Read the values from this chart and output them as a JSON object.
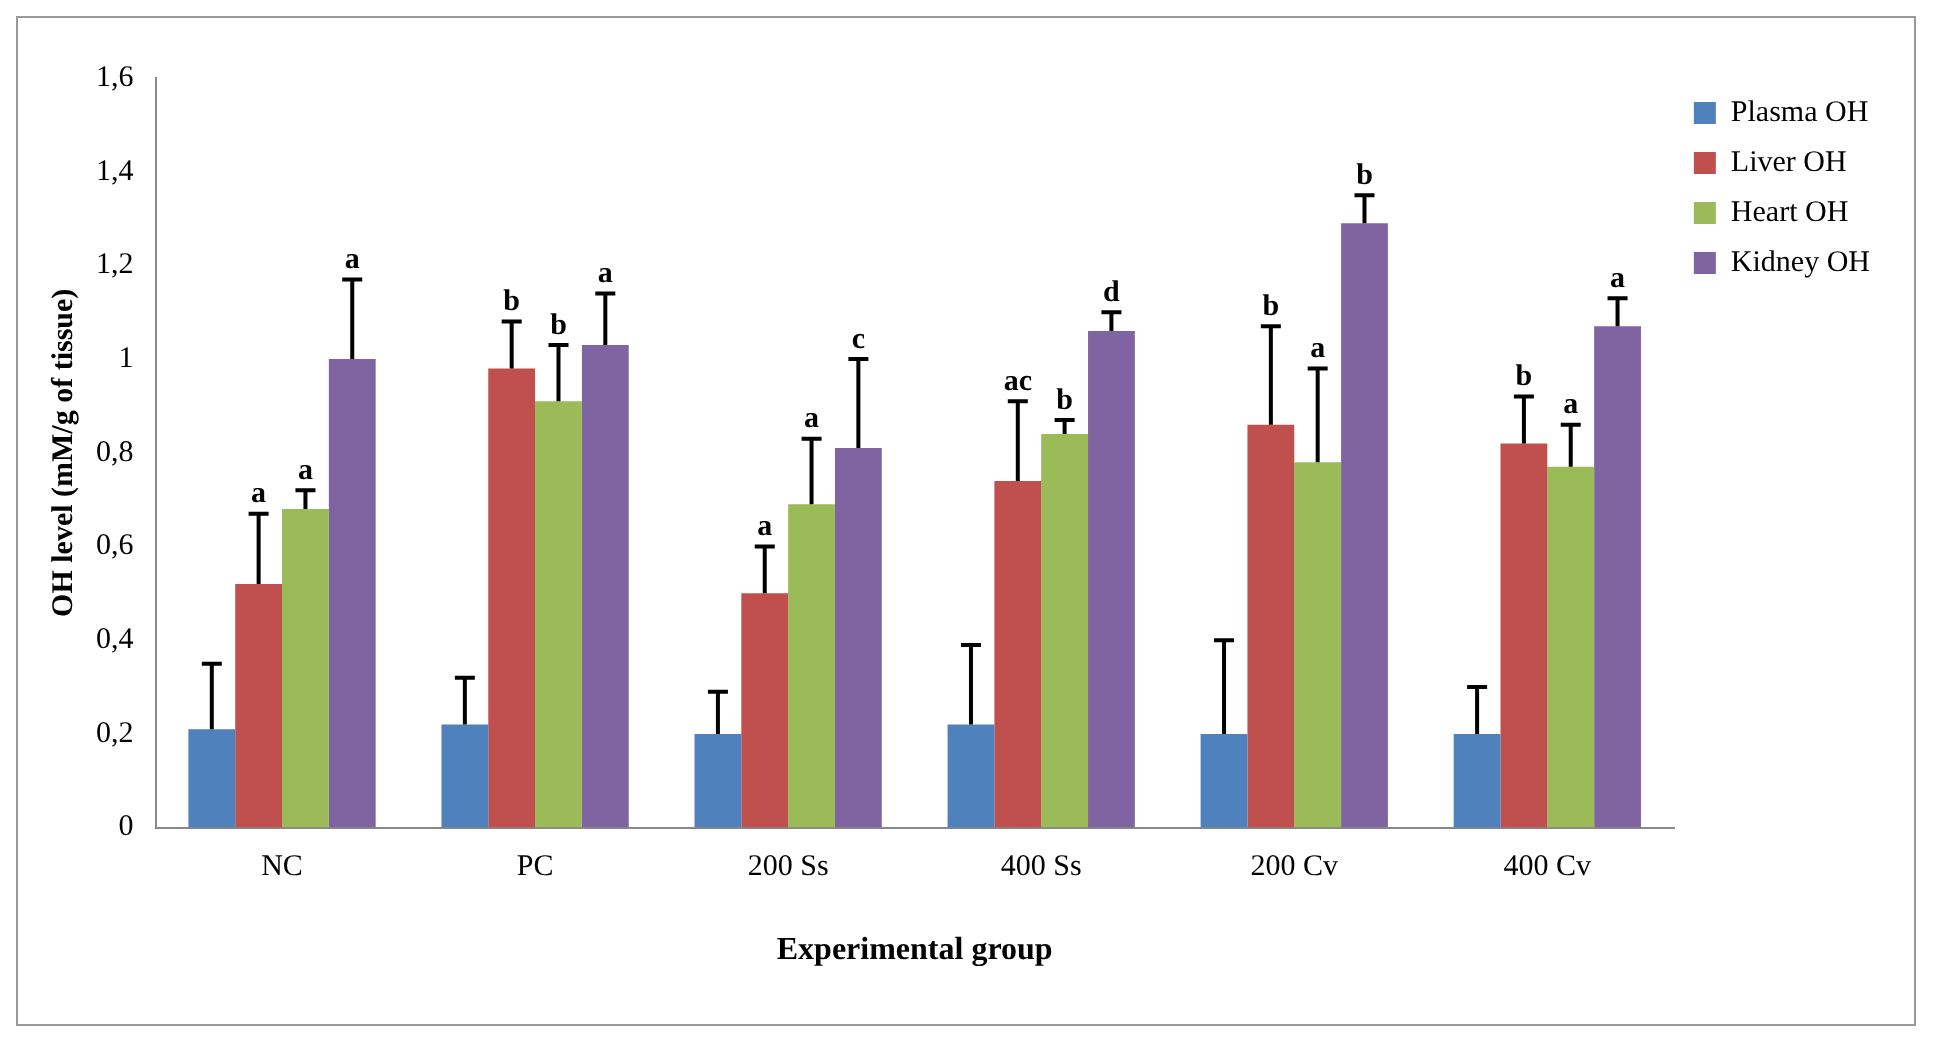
{
  "chart_data": {
    "type": "bar",
    "xlabel": "Experimental group",
    "ylabel": "OH level (mM/g of tissue)",
    "categories": [
      "NC",
      "PC",
      "200 Ss",
      "400 Ss",
      "200 Cv",
      "400 Cv"
    ],
    "series": [
      {
        "name": "Plasma OH",
        "color": "#4f81bd",
        "values": [
          0.21,
          0.22,
          0.2,
          0.22,
          0.2,
          0.2
        ],
        "errors": [
          [
            0.21,
            0.35
          ],
          [
            0.22,
            0.32
          ],
          [
            0.2,
            0.29
          ],
          [
            0.22,
            0.39
          ],
          [
            0.2,
            0.4
          ],
          [
            0.2,
            0.3
          ]
        ]
      },
      {
        "name": "Liver OH",
        "color": "#c0504d",
        "values": [
          0.52,
          0.98,
          0.5,
          0.74,
          0.86,
          0.82
        ],
        "errors": [
          [
            0.52,
            0.67
          ],
          [
            0.98,
            1.08
          ],
          [
            0.5,
            0.6
          ],
          [
            0.74,
            0.91
          ],
          [
            0.86,
            1.07
          ],
          [
            0.82,
            0.92
          ]
        ]
      },
      {
        "name": "Heart OH",
        "color": "#9bbb59",
        "values": [
          0.68,
          0.91,
          0.69,
          0.84,
          0.78,
          0.77
        ],
        "errors": [
          [
            0.68,
            0.72
          ],
          [
            0.91,
            1.03
          ],
          [
            0.69,
            0.83
          ],
          [
            0.84,
            0.87
          ],
          [
            0.78,
            0.98
          ],
          [
            0.77,
            0.86
          ]
        ]
      },
      {
        "name": "Kidney OH",
        "color": "#8064a2",
        "values": [
          1.0,
          1.03,
          0.81,
          1.06,
          1.29,
          1.07
        ],
        "errors": [
          [
            1.0,
            1.17
          ],
          [
            1.03,
            1.14
          ],
          [
            0.81,
            1.0
          ],
          [
            1.06,
            1.1
          ],
          [
            1.29,
            1.35
          ],
          [
            1.07,
            1.13
          ]
        ]
      }
    ],
    "ylim": [
      0,
      1.6
    ],
    "yticks": [
      0,
      {
        "value": 0.2,
        "label": "0,2"
      },
      {
        "value": 0.4,
        "label": "0,4"
      },
      {
        "value": 0.6,
        "label": "0,6"
      },
      {
        "value": 0.8,
        "label": "0,8"
      },
      1,
      {
        "value": 1.2,
        "label": "1,2"
      },
      {
        "value": 1.4,
        "label": "1,4"
      },
      {
        "value": 1.6,
        "label": "1,6"
      }
    ],
    "grid": false,
    "legend": "top right",
    "annotations": [
      "a",
      "a",
      "a",
      "b",
      "b",
      "a",
      "a",
      "a",
      "c",
      "ac",
      "b",
      "d",
      "b",
      "a",
      "b",
      "b",
      "a",
      "a"
    ]
  }
}
